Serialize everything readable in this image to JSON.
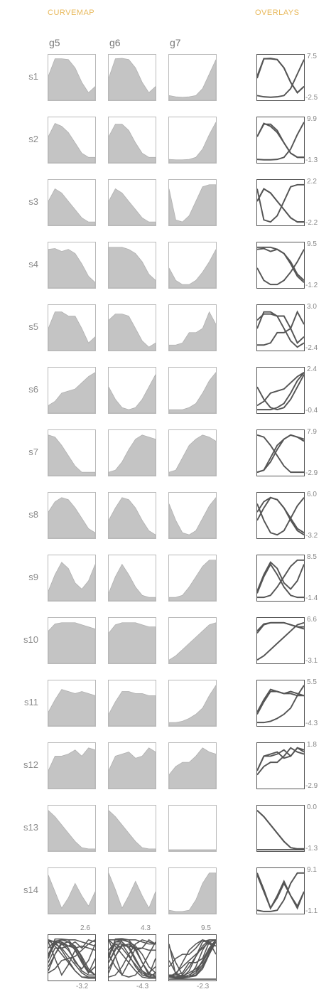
{
  "header": {
    "curvemap_label": "CURVEMAP",
    "overlays_label": "OVERLAYS",
    "accent_color": "#e8b85a"
  },
  "chart_data": {
    "type": "curvemap",
    "columns": [
      "g5",
      "g6",
      "g7"
    ],
    "rows": [
      "s1",
      "s2",
      "s3",
      "s4",
      "s5",
      "s6",
      "s7",
      "s8",
      "s9",
      "s10",
      "s11",
      "s12",
      "s13",
      "s14"
    ],
    "fill_color": "#c4c4c4",
    "line_color": "#555555",
    "series": [
      {
        "row": "s1",
        "g5": [
          0.55,
          0.97,
          0.97,
          0.95,
          0.75,
          0.4,
          0.15,
          0.3
        ],
        "g6": [
          0.5,
          0.97,
          0.98,
          0.95,
          0.75,
          0.4,
          0.15,
          0.3
        ],
        "g7": [
          0.08,
          0.05,
          0.04,
          0.05,
          0.08,
          0.25,
          0.6,
          0.95
        ],
        "overlay_max": "7.5",
        "overlay_min": "-2.5"
      },
      {
        "row": "s2",
        "g5": [
          0.6,
          0.92,
          0.85,
          0.7,
          0.45,
          0.2,
          0.1,
          0.1
        ],
        "g6": [
          0.6,
          0.9,
          0.9,
          0.75,
          0.45,
          0.2,
          0.1,
          0.1
        ],
        "g7": [
          0.05,
          0.04,
          0.04,
          0.05,
          0.1,
          0.3,
          0.65,
          0.95
        ],
        "overlay_max": "9.9",
        "overlay_min": "-1.3"
      },
      {
        "row": "s3",
        "g5": [
          0.55,
          0.85,
          0.75,
          0.55,
          0.35,
          0.15,
          0.05,
          0.05
        ],
        "g6": [
          0.55,
          0.85,
          0.75,
          0.55,
          0.35,
          0.15,
          0.05,
          0.05
        ],
        "g7": [
          0.85,
          0.1,
          0.05,
          0.2,
          0.55,
          0.9,
          0.95,
          0.95
        ],
        "overlay_max": "2.2",
        "overlay_min": "-2.2"
      },
      {
        "row": "s4",
        "g5": [
          0.9,
          0.92,
          0.85,
          0.9,
          0.8,
          0.55,
          0.25,
          0.1
        ],
        "g6": [
          0.95,
          0.95,
          0.95,
          0.9,
          0.8,
          0.6,
          0.3,
          0.15
        ],
        "g7": [
          0.45,
          0.15,
          0.05,
          0.05,
          0.15,
          0.35,
          0.6,
          0.9
        ],
        "overlay_max": "9.5",
        "overlay_min": "-1.2"
      },
      {
        "row": "s5",
        "g5": [
          0.5,
          0.9,
          0.9,
          0.8,
          0.8,
          0.5,
          0.15,
          0.3
        ],
        "g6": [
          0.7,
          0.85,
          0.85,
          0.8,
          0.5,
          0.2,
          0.05,
          0.15
        ],
        "g7": [
          0.1,
          0.1,
          0.15,
          0.4,
          0.4,
          0.5,
          0.9,
          0.6
        ],
        "overlay_max": "3.0",
        "overlay_min": "-2.4"
      },
      {
        "row": "s6",
        "g5": [
          0.15,
          0.25,
          0.45,
          0.5,
          0.55,
          0.7,
          0.85,
          0.95
        ],
        "g6": [
          0.6,
          0.3,
          0.1,
          0.05,
          0.1,
          0.3,
          0.6,
          0.9
        ],
        "g7": [
          0.05,
          0.05,
          0.05,
          0.1,
          0.2,
          0.45,
          0.75,
          0.95
        ],
        "overlay_max": "2.4",
        "overlay_min": "-0.4"
      },
      {
        "row": "s7",
        "g5": [
          0.95,
          0.9,
          0.7,
          0.45,
          0.2,
          0.05,
          0.05,
          0.05
        ],
        "g6": [
          0.05,
          0.1,
          0.3,
          0.6,
          0.85,
          0.95,
          0.9,
          0.85
        ],
        "g7": [
          0.05,
          0.1,
          0.4,
          0.7,
          0.85,
          0.95,
          0.9,
          0.8
        ],
        "overlay_max": "7.9",
        "overlay_min": "-2.9"
      },
      {
        "row": "s8",
        "g5": [
          0.6,
          0.85,
          0.95,
          0.9,
          0.7,
          0.45,
          0.2,
          0.1
        ],
        "g6": [
          0.4,
          0.7,
          0.95,
          0.9,
          0.7,
          0.4,
          0.15,
          0.05
        ],
        "g7": [
          0.8,
          0.4,
          0.1,
          0.05,
          0.15,
          0.45,
          0.75,
          0.95
        ],
        "overlay_max": "6.0",
        "overlay_min": "-3.2"
      },
      {
        "row": "s9",
        "g5": [
          0.2,
          0.6,
          0.9,
          0.75,
          0.4,
          0.25,
          0.45,
          0.85
        ],
        "g6": [
          0.15,
          0.55,
          0.85,
          0.6,
          0.3,
          0.1,
          0.05,
          0.05
        ],
        "g7": [
          0.05,
          0.05,
          0.1,
          0.3,
          0.55,
          0.8,
          0.95,
          0.95
        ],
        "overlay_max": "8.5",
        "overlay_min": "-1.4"
      },
      {
        "row": "s10",
        "g5": [
          0.75,
          0.92,
          0.95,
          0.95,
          0.95,
          0.9,
          0.85,
          0.8
        ],
        "g6": [
          0.7,
          0.9,
          0.95,
          0.95,
          0.95,
          0.9,
          0.85,
          0.85
        ],
        "g7": [
          0.05,
          0.15,
          0.3,
          0.45,
          0.6,
          0.75,
          0.9,
          0.95
        ],
        "overlay_max": "6.6",
        "overlay_min": "-3.1"
      },
      {
        "row": "s11",
        "g5": [
          0.3,
          0.6,
          0.85,
          0.8,
          0.75,
          0.8,
          0.75,
          0.7
        ],
        "g6": [
          0.25,
          0.55,
          0.8,
          0.8,
          0.75,
          0.75,
          0.7,
          0.7
        ],
        "g7": [
          0.05,
          0.05,
          0.08,
          0.15,
          0.25,
          0.4,
          0.7,
          0.95
        ],
        "overlay_max": "5.5",
        "overlay_min": "-4.3"
      },
      {
        "row": "s12",
        "g5": [
          0.4,
          0.75,
          0.75,
          0.8,
          0.9,
          0.75,
          0.95,
          0.9
        ],
        "g6": [
          0.4,
          0.75,
          0.8,
          0.85,
          0.7,
          0.75,
          0.95,
          0.85
        ],
        "g7": [
          0.3,
          0.5,
          0.6,
          0.6,
          0.75,
          0.95,
          0.85,
          0.8
        ],
        "overlay_max": "1.8",
        "overlay_min": "-2.9"
      },
      {
        "row": "s13",
        "g5": [
          0.95,
          0.8,
          0.6,
          0.4,
          0.2,
          0.05,
          0.02,
          0.02
        ],
        "g6": [
          0.95,
          0.8,
          0.6,
          0.4,
          0.2,
          0.05,
          0.02,
          0.02
        ],
        "g7": [
          0.0,
          0.0,
          0.0,
          0.0,
          0.0,
          0.0,
          0.0,
          0.0
        ],
        "overlay_max": "0.0",
        "overlay_min": "-1.3"
      },
      {
        "row": "s14",
        "g5": [
          0.9,
          0.5,
          0.1,
          0.35,
          0.7,
          0.4,
          0.15,
          0.5
        ],
        "g6": [
          0.95,
          0.55,
          0.1,
          0.4,
          0.75,
          0.4,
          0.1,
          0.5
        ],
        "g7": [
          0.05,
          0.02,
          0.02,
          0.05,
          0.3,
          0.7,
          0.95,
          0.95
        ],
        "overlay_max": "9.1",
        "overlay_min": "-1.1"
      }
    ],
    "column_overlays": [
      {
        "column": "g5",
        "max": "2.6",
        "min": "-3.2"
      },
      {
        "column": "g6",
        "max": "4.3",
        "min": "-4.3"
      },
      {
        "column": "g7",
        "max": "9.5",
        "min": "-2.3"
      }
    ]
  }
}
